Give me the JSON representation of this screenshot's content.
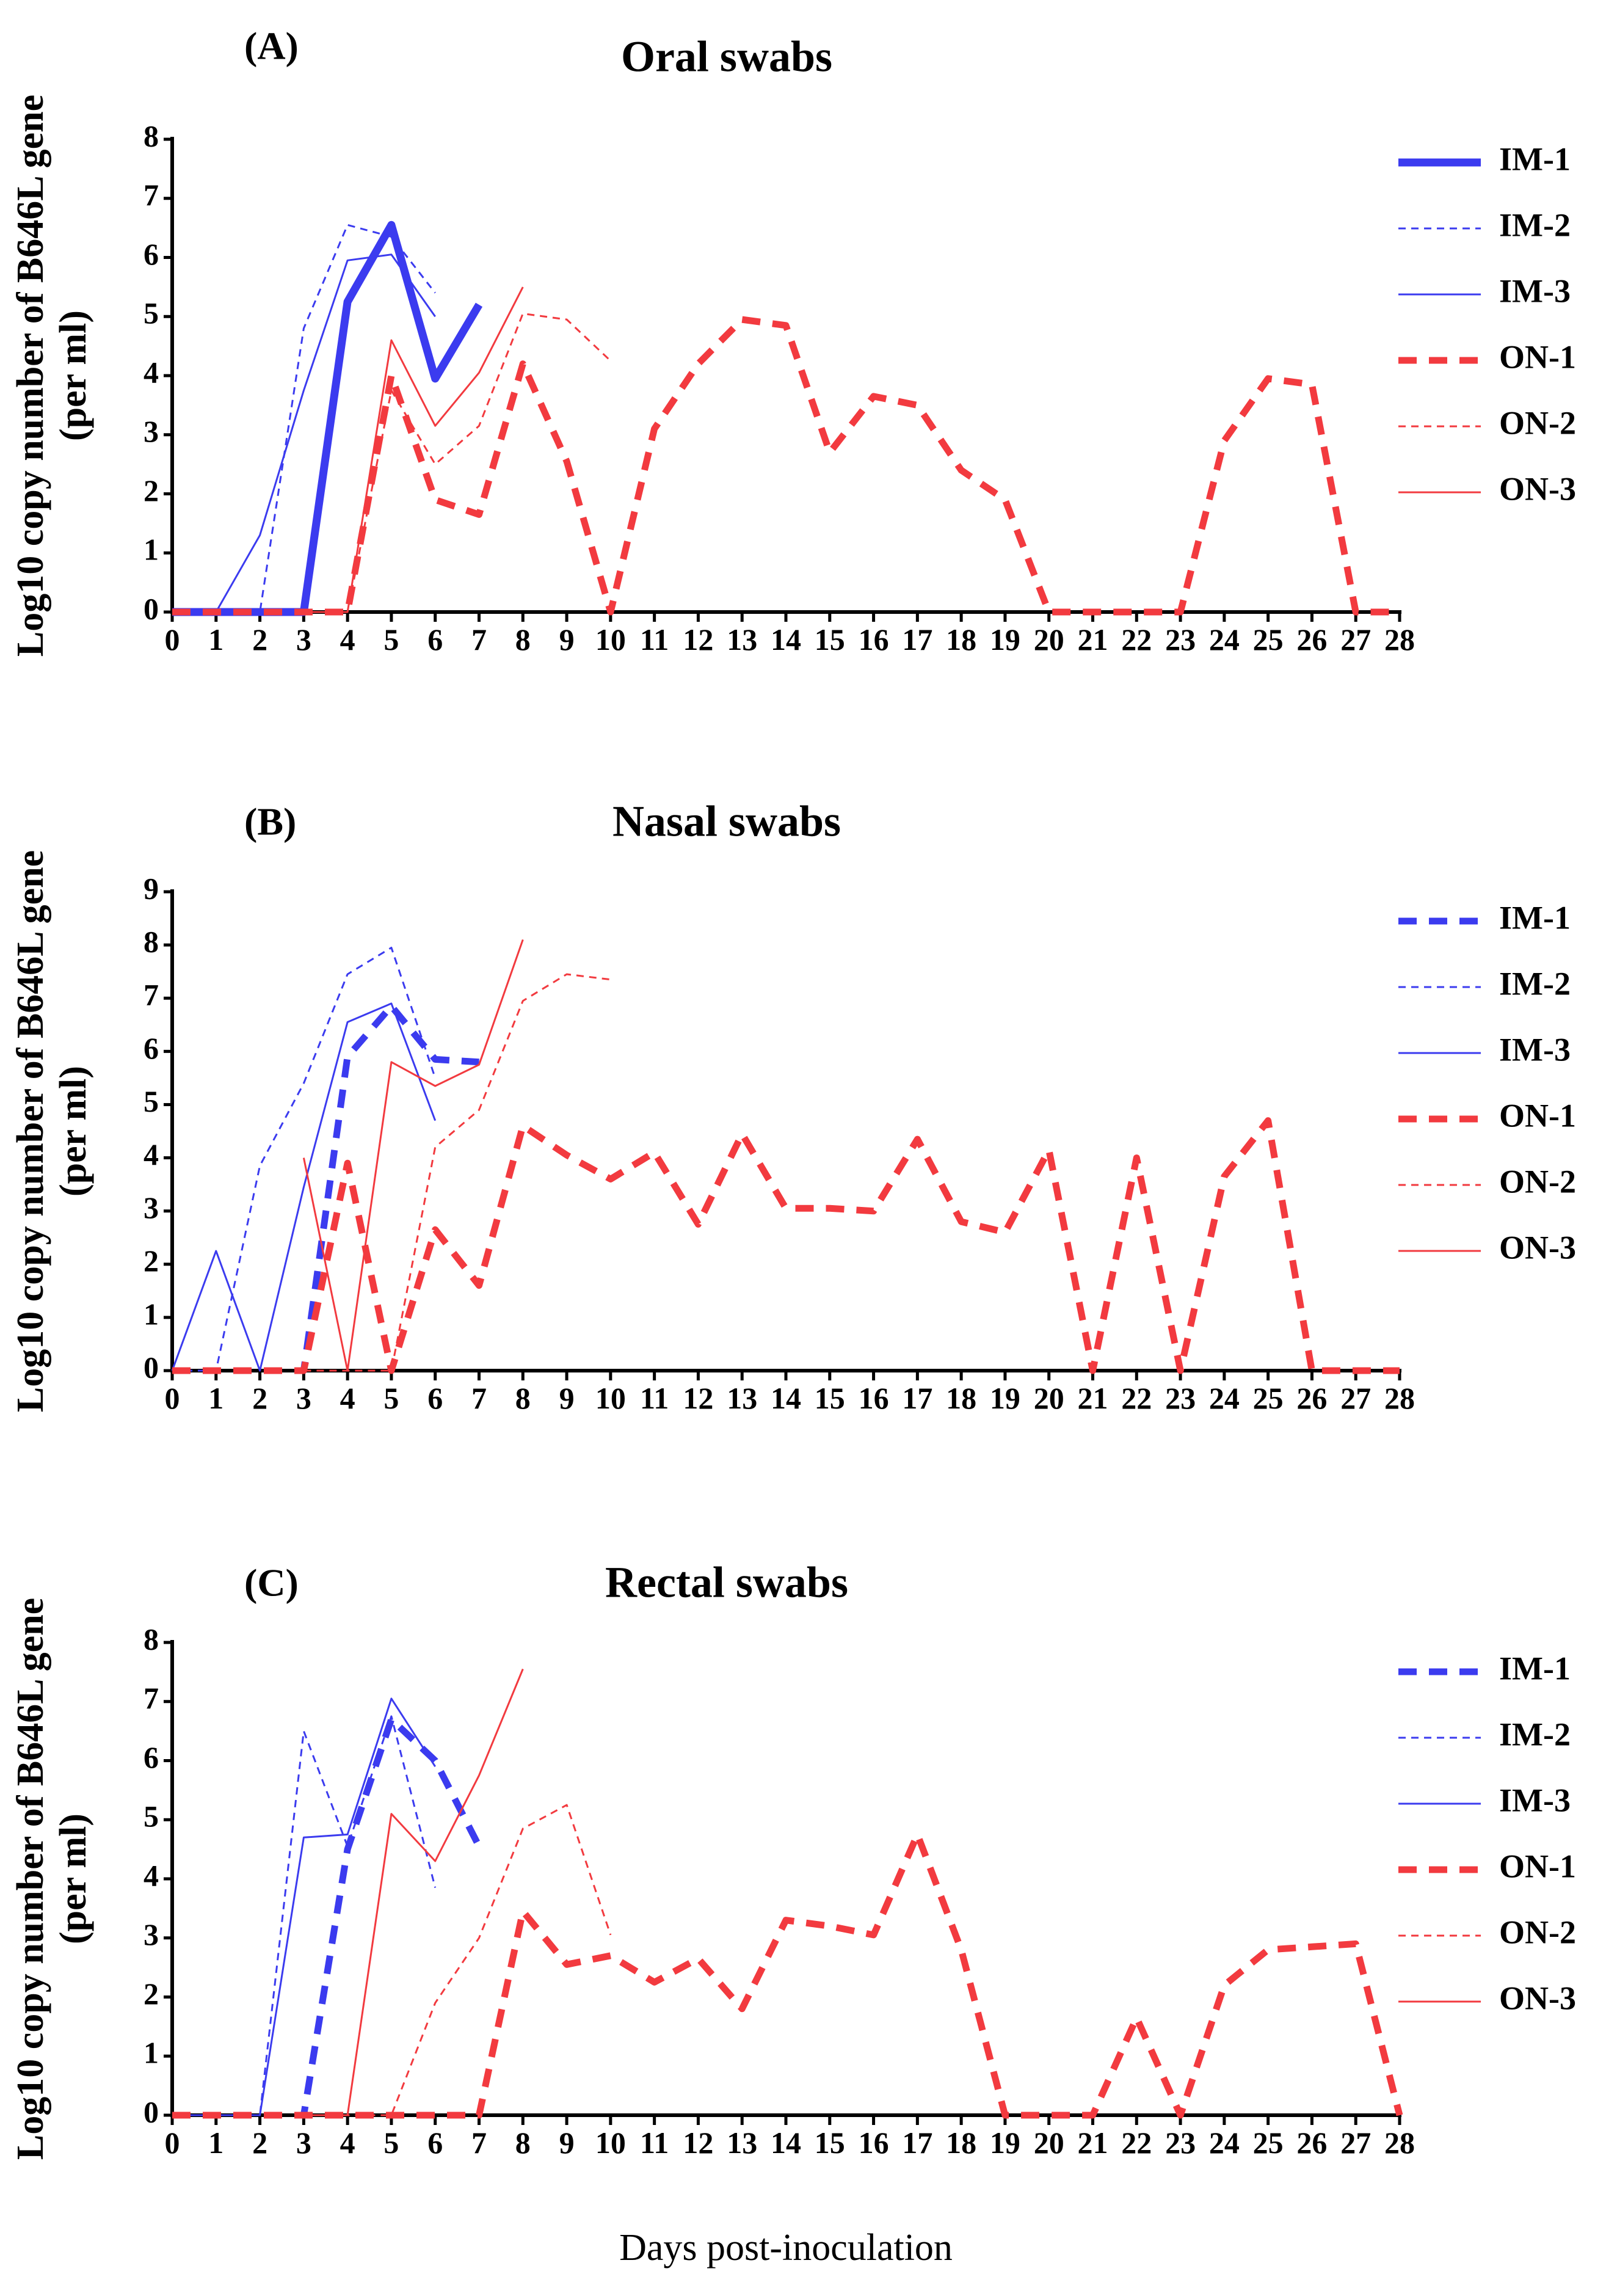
{
  "xlabel": "Days post-inoculation",
  "colors": {
    "IM": "#3b3bef",
    "ON": "#f23a3f",
    "axis": "#000000"
  },
  "chart_data": [
    {
      "panel": "(A)",
      "title": "Oral swabs",
      "type": "line",
      "ylabel": "Log10 copy number of B646L gene (per ml)",
      "ylim": [
        0,
        8
      ],
      "yticks": [
        0,
        1,
        2,
        3,
        4,
        5,
        6,
        7,
        8
      ],
      "xlim": [
        0,
        28
      ],
      "legend_position": "right",
      "series": [
        {
          "name": "IM-1",
          "group": "IM",
          "style": "thick",
          "x": [
            0,
            1,
            2,
            3,
            4,
            5,
            6,
            7
          ],
          "values": [
            0,
            0,
            0,
            0,
            5.25,
            6.55,
            3.95,
            5.2
          ]
        },
        {
          "name": "IM-2",
          "group": "IM",
          "style": "dotted",
          "x": [
            0,
            1,
            2,
            3,
            4,
            5,
            6
          ],
          "values": [
            0,
            0,
            0,
            4.8,
            6.55,
            6.35,
            5.4
          ]
        },
        {
          "name": "IM-3",
          "group": "IM",
          "style": "thin",
          "x": [
            0,
            1,
            2,
            3,
            4,
            5,
            6
          ],
          "values": [
            0,
            0,
            1.3,
            3.75,
            5.95,
            6.05,
            5.0
          ]
        },
        {
          "name": "ON-1",
          "group": "ON",
          "style": "dashed",
          "x": [
            0,
            1,
            2,
            3,
            4,
            5,
            6,
            7,
            8,
            9,
            10,
            11,
            12,
            13,
            14,
            15,
            16,
            17,
            18,
            19,
            20,
            21,
            22,
            23,
            24,
            25,
            26,
            27,
            28
          ],
          "values": [
            0,
            0,
            0,
            0,
            0,
            4.0,
            1.9,
            1.65,
            4.2,
            2.55,
            0,
            3.1,
            4.2,
            4.95,
            4.85,
            2.7,
            3.65,
            3.5,
            2.4,
            1.9,
            0,
            0,
            0,
            0,
            2.9,
            3.95,
            3.85,
            0,
            0
          ]
        },
        {
          "name": "ON-2",
          "group": "ON",
          "style": "dotted",
          "x": [
            3,
            4,
            5,
            6,
            7,
            8,
            9,
            10
          ],
          "values": [
            0,
            0,
            3.75,
            2.5,
            3.15,
            5.05,
            4.95,
            4.25
          ]
        },
        {
          "name": "ON-3",
          "group": "ON",
          "style": "thin",
          "x": [
            3,
            4,
            5,
            6,
            7,
            8
          ],
          "values": [
            0,
            0,
            4.6,
            3.15,
            4.05,
            5.5
          ]
        }
      ]
    },
    {
      "panel": "(B)",
      "title": "Nasal swabs",
      "type": "line",
      "ylabel": "Log10 copy number of B646L gene (per ml)",
      "ylim": [
        0,
        9
      ],
      "yticks": [
        0,
        1,
        2,
        3,
        4,
        5,
        6,
        7,
        8,
        9
      ],
      "xlim": [
        0,
        28
      ],
      "legend_position": "right",
      "series": [
        {
          "name": "IM-1",
          "group": "IM",
          "style": "dashed",
          "x": [
            0,
            1,
            2,
            3,
            4,
            5,
            6,
            7
          ],
          "values": [
            0,
            0,
            0,
            0,
            5.9,
            6.85,
            5.85,
            5.8
          ]
        },
        {
          "name": "IM-2",
          "group": "IM",
          "style": "dotted",
          "x": [
            0,
            1,
            2,
            3,
            4,
            5,
            6
          ],
          "values": [
            0,
            0,
            3.85,
            5.4,
            7.45,
            7.95,
            5.5
          ]
        },
        {
          "name": "IM-3",
          "group": "IM",
          "style": "thin",
          "x": [
            0,
            1,
            2,
            3,
            4,
            5,
            6
          ],
          "values": [
            0,
            2.25,
            0,
            3.45,
            6.55,
            6.9,
            4.7
          ]
        },
        {
          "name": "ON-1",
          "group": "ON",
          "style": "dashed",
          "x": [
            0,
            1,
            2,
            3,
            4,
            5,
            6,
            7,
            8,
            9,
            10,
            11,
            12,
            13,
            14,
            15,
            16,
            17,
            18,
            19,
            20,
            21,
            22,
            23,
            24,
            25,
            26,
            27,
            28
          ],
          "values": [
            0,
            0,
            0,
            0,
            3.9,
            0,
            2.65,
            1.6,
            4.6,
            4.05,
            3.6,
            4.1,
            2.75,
            4.45,
            3.05,
            3.05,
            3.0,
            4.35,
            2.8,
            2.6,
            4.15,
            0,
            4.0,
            0,
            3.65,
            4.7,
            0,
            0,
            0
          ]
        },
        {
          "name": "ON-2",
          "group": "ON",
          "style": "dotted",
          "x": [
            3,
            4,
            5,
            6,
            7,
            8,
            9,
            10
          ],
          "values": [
            0,
            0,
            0,
            4.2,
            4.9,
            6.95,
            7.45,
            7.35
          ]
        },
        {
          "name": "ON-3",
          "group": "ON",
          "style": "thin",
          "x": [
            3,
            4,
            5,
            6,
            7,
            8
          ],
          "values": [
            4.0,
            0,
            5.8,
            5.35,
            5.75,
            8.1
          ]
        }
      ]
    },
    {
      "panel": "(C)",
      "title": "Rectal swabs",
      "type": "line",
      "ylabel": "Log10 copy number of B646L gene (per ml)",
      "ylim": [
        0,
        8
      ],
      "yticks": [
        0,
        1,
        2,
        3,
        4,
        5,
        6,
        7,
        8
      ],
      "xlim": [
        0,
        28
      ],
      "legend_position": "right",
      "series": [
        {
          "name": "IM-1",
          "group": "IM",
          "style": "dashed",
          "x": [
            0,
            1,
            2,
            3,
            4,
            5,
            6,
            7
          ],
          "values": [
            0,
            0,
            0,
            0,
            4.5,
            6.7,
            6.0,
            4.55
          ]
        },
        {
          "name": "IM-2",
          "group": "IM",
          "style": "dotted",
          "x": [
            0,
            1,
            2,
            3,
            4,
            5,
            6
          ],
          "values": [
            0,
            0,
            0,
            6.5,
            4.55,
            6.75,
            3.85
          ]
        },
        {
          "name": "IM-3",
          "group": "IM",
          "style": "thin",
          "x": [
            0,
            1,
            2,
            3,
            4,
            5,
            6
          ],
          "values": [
            0,
            0,
            0,
            4.7,
            4.75,
            7.05,
            5.9
          ]
        },
        {
          "name": "ON-1",
          "group": "ON",
          "style": "dashed",
          "x": [
            0,
            1,
            2,
            3,
            4,
            5,
            6,
            7,
            8,
            9,
            10,
            11,
            12,
            13,
            14,
            15,
            16,
            17,
            18,
            19,
            20,
            21,
            22,
            23,
            24,
            25,
            26,
            27,
            28
          ],
          "values": [
            0,
            0,
            0,
            0,
            0,
            0,
            0,
            0,
            3.45,
            2.55,
            2.7,
            2.25,
            2.65,
            1.8,
            3.3,
            3.2,
            3.05,
            4.75,
            2.8,
            0,
            0,
            0,
            1.65,
            0,
            2.2,
            2.8,
            2.85,
            2.9,
            0
          ]
        },
        {
          "name": "ON-2",
          "group": "ON",
          "style": "dotted",
          "x": [
            3,
            4,
            5,
            6,
            7,
            8,
            9,
            10
          ],
          "values": [
            0,
            0,
            0,
            1.9,
            3.0,
            4.85,
            5.25,
            3.05
          ]
        },
        {
          "name": "ON-3",
          "group": "ON",
          "style": "thin",
          "x": [
            3,
            4,
            5,
            6,
            7,
            8
          ],
          "values": [
            0,
            0,
            5.1,
            4.3,
            5.75,
            7.55
          ]
        }
      ]
    }
  ]
}
